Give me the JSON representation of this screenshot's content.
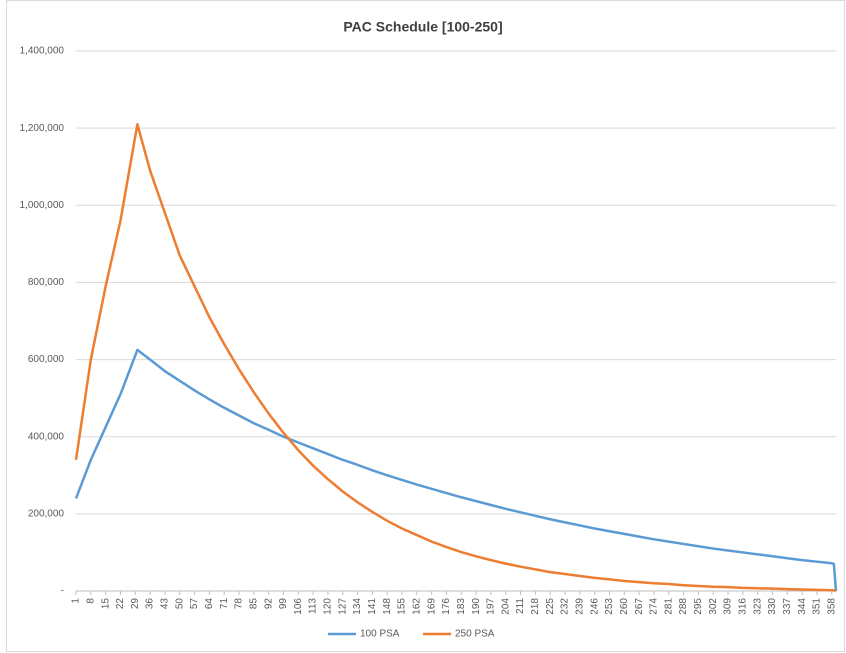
{
  "chart_data": {
    "type": "line",
    "title": "PAC Schedule [100-250]",
    "x": [
      1,
      8,
      15,
      22,
      30,
      36,
      43,
      50,
      57,
      64,
      71,
      78,
      85,
      92,
      99,
      106,
      113,
      120,
      127,
      134,
      141,
      148,
      155,
      162,
      169,
      176,
      183,
      190,
      197,
      204,
      211,
      218,
      225,
      232,
      239,
      246,
      253,
      260,
      267,
      274,
      281,
      288,
      295,
      302,
      309,
      316,
      323,
      330,
      337,
      344,
      351,
      358,
      359,
      360
    ],
    "series": [
      {
        "name": "100 PSA",
        "color": "#5b9bd5",
        "values": [
          240000,
          340000,
          425000,
          510000,
          625000,
          600000,
          570000,
          545000,
          520000,
          497000,
          475000,
          455000,
          435000,
          418000,
          400000,
          385000,
          370000,
          355000,
          340000,
          327000,
          313000,
          300000,
          288000,
          276000,
          265000,
          254000,
          243000,
          233000,
          223000,
          213000,
          204000,
          195000,
          186000,
          178000,
          170000,
          162000,
          155000,
          148000,
          141000,
          134000,
          128000,
          122000,
          116000,
          110000,
          105000,
          100000,
          95000,
          90000,
          85000,
          80000,
          76000,
          72000,
          70000,
          0
        ]
      },
      {
        "name": "250 PSA",
        "color": "#ed7d31",
        "values": [
          340000,
          600000,
          790000,
          960000,
          1210000,
          1090000,
          980000,
          870000,
          790000,
          710000,
          640000,
          575000,
          515000,
          460000,
          410000,
          365000,
          325000,
          290000,
          258000,
          230000,
          205000,
          182000,
          162000,
          145000,
          128000,
          114000,
          101000,
          90000,
          80000,
          71000,
          63000,
          56000,
          49000,
          44000,
          39000,
          34000,
          30000,
          26000,
          23000,
          20000,
          18000,
          15000,
          13000,
          11000,
          10000,
          8000,
          7000,
          6000,
          5000,
          4000,
          3000,
          2000,
          2000,
          0
        ]
      }
    ],
    "xlim": [
      1,
      360
    ],
    "xticks": [
      1,
      8,
      15,
      22,
      29,
      36,
      43,
      50,
      57,
      64,
      71,
      78,
      85,
      92,
      99,
      106,
      113,
      120,
      127,
      134,
      141,
      148,
      155,
      162,
      169,
      176,
      183,
      190,
      197,
      204,
      211,
      218,
      225,
      232,
      239,
      246,
      253,
      260,
      267,
      274,
      281,
      288,
      295,
      302,
      309,
      316,
      323,
      330,
      337,
      344,
      351,
      358
    ],
    "ylim": [
      0,
      1400000
    ],
    "yticks": [
      {
        "value": 0,
        "label": "-"
      },
      {
        "value": 200000,
        "label": "200,000"
      },
      {
        "value": 400000,
        "label": "400,000"
      },
      {
        "value": 600000,
        "label": "600,000"
      },
      {
        "value": 800000,
        "label": "800,000"
      },
      {
        "value": 1000000,
        "label": "1,000,000"
      },
      {
        "value": 1200000,
        "label": "1,200,000"
      },
      {
        "value": 1400000,
        "label": "1,400,000"
      }
    ],
    "grid": true,
    "legend": "bottom"
  }
}
